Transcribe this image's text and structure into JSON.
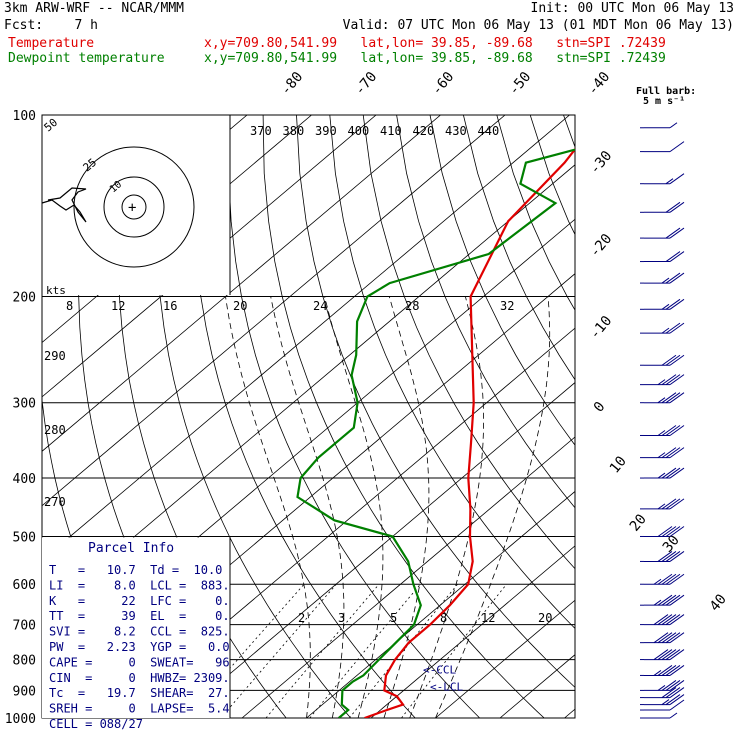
{
  "header": {
    "model": "3km ARW-WRF -- NCAR/MMM",
    "init": "Init: 00 UTC Mon 06 May 13",
    "fcst": "Fcst:    7 h",
    "valid": "Valid: 07 UTC Mon 06 May 13 (01 MDT Mon 06 May 13)",
    "temp_label": "Temperature",
    "temp_loc": "x,y=709.80,541.99   lat,lon= 39.85, -89.68   stn=SPI .72439",
    "dew_label": "Dewpoint temperature",
    "dew_loc": "x,y=709.80,541.99   lat,lon= 39.85, -89.68   stn=SPI .72439",
    "barb_legend_1": "Full barb:",
    "barb_legend_2": "5 m s⁻¹"
  },
  "colors": {
    "temperature": "#e00000",
    "dewpoint": "#008000",
    "parcel": "#000080",
    "barbs": "#000080"
  },
  "parcel_info": {
    "title": "Parcel Info",
    "rows": [
      "T   =   10.7  Td =  10.0",
      "LI  =    8.0  LCL =  883.",
      "K   =     22  LFC =    0.",
      "TT  =     39  EL  =    0.",
      "SVI =    8.2  CCL =  825.",
      "PW  =   2.23  YGP =   0.0",
      "CAPE =     0  SWEAT=   96",
      "CIN  =     0  HWBZ= 2309.",
      "Tc  =   19.7  SHEAR=  27.",
      "SREH =     0  LAPSE=  5.4",
      "CELL = 088/27"
    ]
  },
  "hodograph": {
    "kts_label": "kts",
    "ring_labels": [
      "25",
      "50"
    ],
    "ring_inner": "10"
  },
  "markers": {
    "ccl": "<-CCL",
    "lcl": "<-LCL"
  },
  "chart_data": {
    "type": "line",
    "chart": "Skew-T log-P",
    "y_axis": {
      "label": "",
      "scale": "log",
      "ylim": [
        1000,
        100
      ],
      "ticks": [
        100,
        200,
        300,
        400,
        500,
        600,
        700,
        800,
        900,
        1000
      ]
    },
    "isotherm_labels": [
      "-80",
      "-70",
      "-60",
      "-50",
      "-40",
      "-30",
      "-20",
      "-10",
      "0",
      "10",
      "20",
      "30",
      "40"
    ],
    "theta_e_labels": [
      "370",
      "380",
      "390",
      "400",
      "410",
      "420",
      "430",
      "440"
    ],
    "dry_adiabat_labels": [
      "290",
      "280",
      "270"
    ],
    "mixing_ratio_labels_upper": [
      "8",
      "12",
      "16",
      "20",
      "24",
      "28",
      "32"
    ],
    "mixing_ratio_labels_lower": [
      "2",
      "3",
      "5",
      "8",
      "12",
      "20"
    ],
    "series": [
      {
        "name": "Temperature",
        "points": [
          [
            1000,
            19
          ],
          [
            970,
            21
          ],
          [
            950,
            22.5
          ],
          [
            920,
            20
          ],
          [
            900,
            17
          ],
          [
            850,
            14.5
          ],
          [
            800,
            13
          ],
          [
            750,
            12
          ],
          [
            700,
            12
          ],
          [
            650,
            11.5
          ],
          [
            600,
            10.5
          ],
          [
            550,
            7
          ],
          [
            500,
            2
          ],
          [
            450,
            -3
          ],
          [
            400,
            -9
          ],
          [
            350,
            -15
          ],
          [
            300,
            -22
          ],
          [
            250,
            -31
          ],
          [
            200,
            -42
          ],
          [
            150,
            -50
          ],
          [
            120,
            -52
          ],
          [
            100,
            -55
          ]
        ]
      },
      {
        "name": "Dewpoint temperature",
        "points": [
          [
            1000,
            15
          ],
          [
            970,
            15
          ],
          [
            950,
            13
          ],
          [
            900,
            10.5
          ],
          [
            870,
            10.5
          ],
          [
            850,
            11
          ],
          [
            800,
            10.5
          ],
          [
            750,
            10
          ],
          [
            700,
            9.5
          ],
          [
            650,
            7
          ],
          [
            600,
            2
          ],
          [
            550,
            -3
          ],
          [
            500,
            -10
          ],
          [
            470,
            -22
          ],
          [
            430,
            -32
          ],
          [
            400,
            -35
          ],
          [
            370,
            -36
          ],
          [
            330,
            -36
          ],
          [
            300,
            -40
          ],
          [
            270,
            -46
          ],
          [
            250,
            -49
          ],
          [
            220,
            -55
          ],
          [
            200,
            -58
          ],
          [
            190,
            -57
          ],
          [
            170,
            -47
          ],
          [
            140,
            -46
          ],
          [
            130,
            -55
          ],
          [
            120,
            -58
          ],
          [
            110,
            -49
          ],
          [
            100,
            -48
          ]
        ]
      }
    ],
    "wind_barbs": [
      {
        "p": 1000,
        "full": 0,
        "half": 1
      },
      {
        "p": 970,
        "full": 1,
        "half": 0
      },
      {
        "p": 950,
        "full": 2,
        "half": 1
      },
      {
        "p": 925,
        "full": 3,
        "half": 0
      },
      {
        "p": 900,
        "full": 3,
        "half": 1
      },
      {
        "p": 850,
        "full": 4,
        "half": 1
      },
      {
        "p": 800,
        "full": 5,
        "half": 0
      },
      {
        "p": 750,
        "full": 5,
        "half": 0
      },
      {
        "p": 700,
        "full": 5,
        "half": 0
      },
      {
        "p": 650,
        "full": 4,
        "half": 1
      },
      {
        "p": 600,
        "full": 4,
        "half": 1
      },
      {
        "p": 550,
        "full": 4,
        "half": 0
      },
      {
        "p": 500,
        "full": 4,
        "half": 0
      },
      {
        "p": 450,
        "full": 3,
        "half": 1
      },
      {
        "p": 400,
        "full": 3,
        "half": 1
      },
      {
        "p": 370,
        "full": 3,
        "half": 1
      },
      {
        "p": 340,
        "full": 3,
        "half": 1
      },
      {
        "p": 300,
        "full": 3,
        "half": 1
      },
      {
        "p": 280,
        "full": 3,
        "half": 1
      },
      {
        "p": 260,
        "full": 3,
        "half": 0
      },
      {
        "p": 230,
        "full": 2,
        "half": 1
      },
      {
        "p": 210,
        "full": 2,
        "half": 1
      },
      {
        "p": 190,
        "full": 2,
        "half": 1
      },
      {
        "p": 175,
        "full": 2,
        "half": 0
      },
      {
        "p": 160,
        "full": 2,
        "half": 0
      },
      {
        "p": 145,
        "full": 2,
        "half": 0
      },
      {
        "p": 130,
        "full": 1,
        "half": 1
      },
      {
        "p": 115,
        "full": 1,
        "half": 0
      },
      {
        "p": 105,
        "full": 0,
        "half": 1
      }
    ]
  }
}
